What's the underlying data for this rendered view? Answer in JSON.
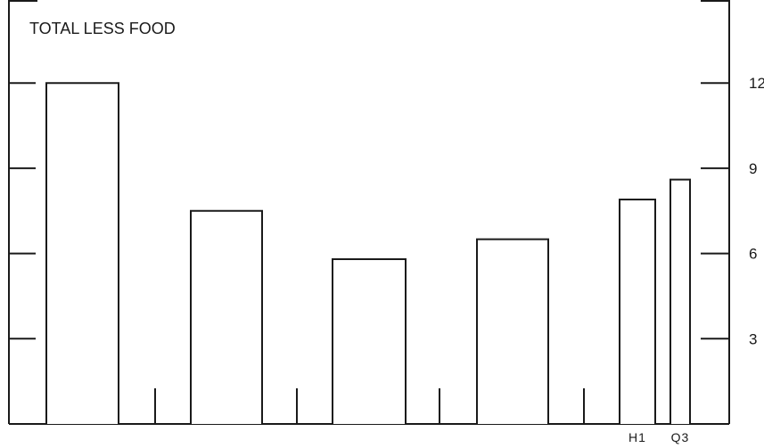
{
  "chart_data": {
    "type": "bar",
    "title": "TOTAL LESS FOOD",
    "xlabel": "",
    "ylabel": "",
    "ylim": [
      0,
      15
    ],
    "yticks": [
      3,
      6,
      9,
      12
    ],
    "yticks_side": "right",
    "grid": false,
    "legend": "none",
    "bar_fill": "#ffffff",
    "stroke_color": "#1a1a1a",
    "categories": [
      "",
      "",
      "",
      "",
      "H1",
      "Q3"
    ],
    "values": [
      12.0,
      7.5,
      5.8,
      6.5,
      7.9,
      8.6
    ]
  }
}
